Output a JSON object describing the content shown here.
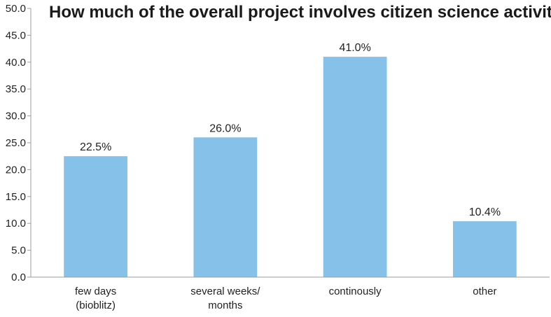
{
  "chart_data": {
    "type": "bar",
    "title": "How much of the overall project involves citizen science activity?",
    "categories": [
      [
        "few days",
        "(bioblitz)"
      ],
      [
        "several weeks/",
        "months"
      ],
      [
        "continously"
      ],
      [
        "other"
      ]
    ],
    "values": [
      22.5,
      26.0,
      41.0,
      10.4
    ],
    "data_labels": [
      "22.5%",
      "26.0%",
      "41.0%",
      "10.4%"
    ],
    "y_ticks": [
      "0.0",
      "5.0",
      "10.0",
      "15.0",
      "20.0",
      "25.0",
      "30.0",
      "35.0",
      "40.0",
      "45.0",
      "50.0"
    ],
    "ylim": [
      0,
      50
    ],
    "grid": false,
    "legend": "none",
    "bar_color": "#85C1E9",
    "axis_color": "#9e9e9e",
    "xlabel": "",
    "ylabel": ""
  }
}
